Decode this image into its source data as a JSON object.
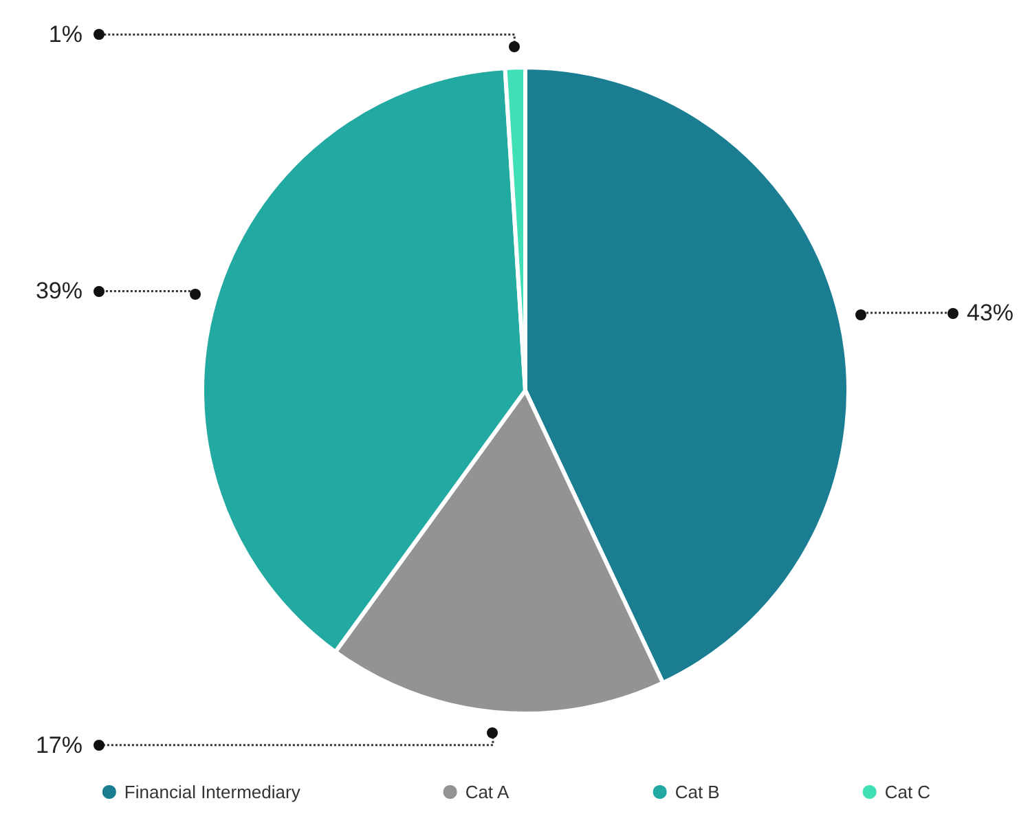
{
  "chart_data": {
    "type": "pie",
    "categories": [
      "Financial Intermediary",
      "Cat A",
      "Cat B",
      "Cat C"
    ],
    "values": [
      43,
      17,
      39,
      1
    ],
    "colors": [
      "#1a7d92",
      "#939393",
      "#22a9a1",
      "#40dfb5"
    ],
    "value_labels": [
      "43%",
      "17%",
      "39%",
      "1%"
    ],
    "legend": "bottom"
  }
}
